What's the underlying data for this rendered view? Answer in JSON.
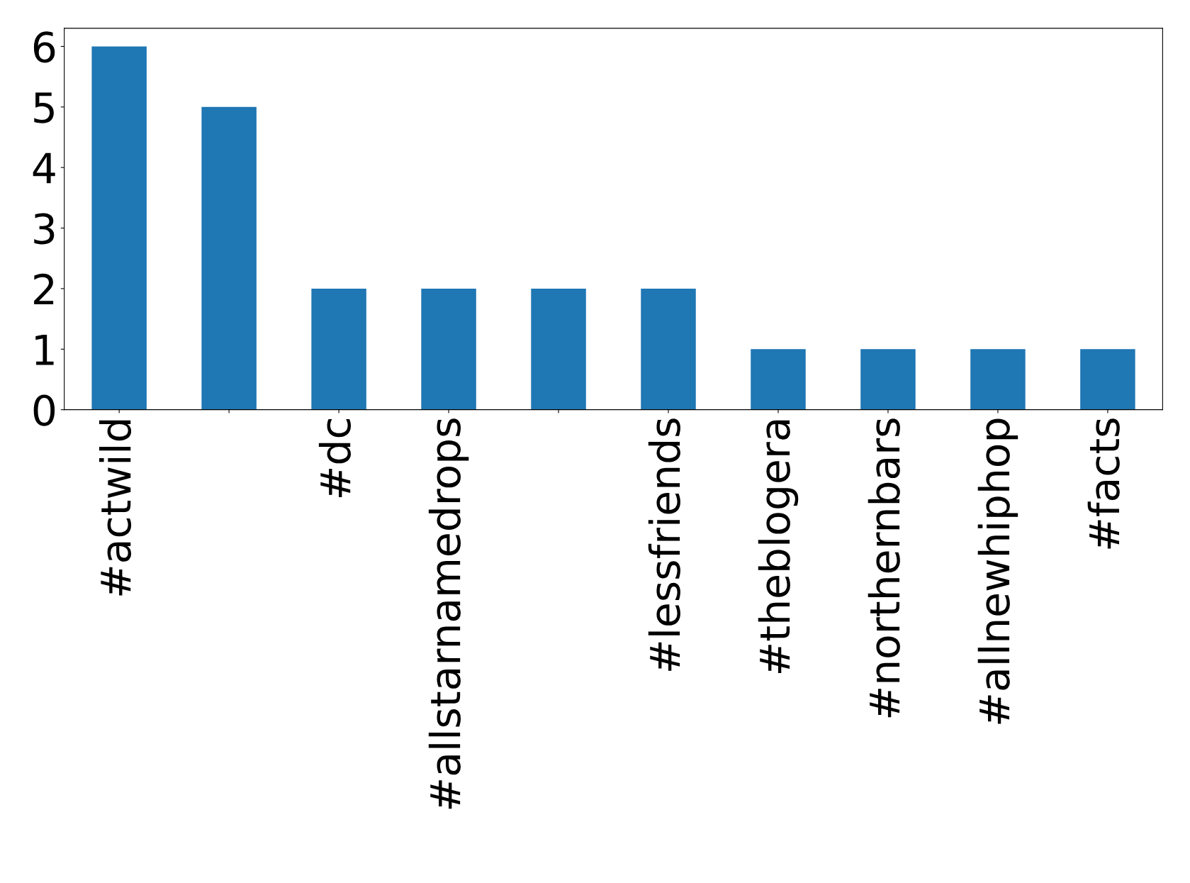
{
  "chart_data": {
    "type": "bar",
    "categories": [
      "#actwild",
      null,
      "#dc",
      "#allstarnamedrops",
      null,
      "#lessfriends",
      "#theblogera",
      "#northernbars",
      "#allnewhiphop",
      "#facts"
    ],
    "values": [
      6,
      5,
      2,
      2,
      2,
      2,
      1,
      1,
      1,
      1
    ],
    "color": "#1f77b4",
    "ylim": [
      0,
      6.3
    ],
    "yticks": [
      0,
      1,
      2,
      3,
      4,
      5,
      6
    ],
    "grid": false,
    "legend": false
  }
}
